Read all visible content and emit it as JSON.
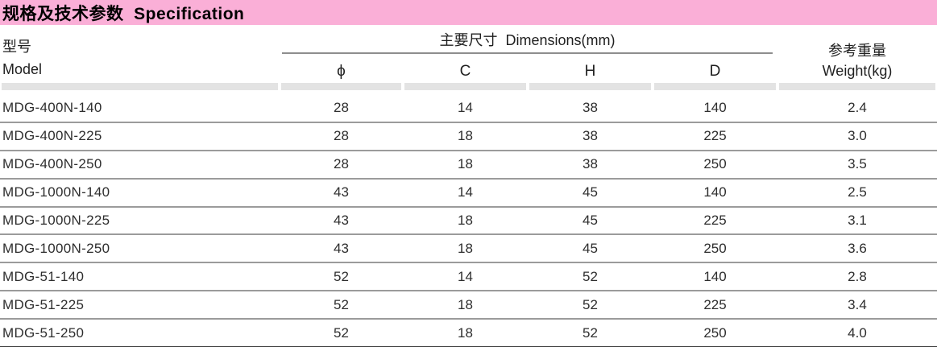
{
  "title_bar": {
    "text": "规格及技术参数  Specification",
    "bg_color": "#faafd7"
  },
  "table": {
    "model_header": {
      "zh": "型号",
      "en": "Model"
    },
    "dimensions_header": "主要尺寸  Dimensions(mm)",
    "sub_columns": {
      "phi": "ϕ",
      "c": "C",
      "h": "H",
      "d": "D"
    },
    "weight_header": {
      "zh": "参考重量",
      "en": "Weight(kg)"
    },
    "rows": [
      {
        "model": "MDG-400N-140",
        "phi": "28",
        "c": "14",
        "h": "38",
        "d": "140",
        "weight": "2.4"
      },
      {
        "model": "MDG-400N-225",
        "phi": "28",
        "c": "18",
        "h": "38",
        "d": "225",
        "weight": "3.0"
      },
      {
        "model": "MDG-400N-250",
        "phi": "28",
        "c": "18",
        "h": "38",
        "d": "250",
        "weight": "3.5"
      },
      {
        "model": "MDG-1000N-140",
        "phi": "43",
        "c": "14",
        "h": "45",
        "d": "140",
        "weight": "2.5"
      },
      {
        "model": "MDG-1000N-225",
        "phi": "43",
        "c": "18",
        "h": "45",
        "d": "225",
        "weight": "3.1"
      },
      {
        "model": "MDG-1000N-250",
        "phi": "43",
        "c": "18",
        "h": "45",
        "d": "250",
        "weight": "3.6"
      },
      {
        "model": "MDG-51-140",
        "phi": "52",
        "c": "14",
        "h": "52",
        "d": "140",
        "weight": "2.8"
      },
      {
        "model": "MDG-51-225",
        "phi": "52",
        "c": "18",
        "h": "52",
        "d": "225",
        "weight": "3.4"
      },
      {
        "model": "MDG-51-250",
        "phi": "52",
        "c": "18",
        "h": "52",
        "d": "250",
        "weight": "4.0"
      }
    ]
  },
  "colors": {
    "header_pink": "#faafd7",
    "band_gray": "#e3e3e3",
    "row_separator": "#9b9b9b",
    "bottom_rule": "#3a3a3a"
  }
}
